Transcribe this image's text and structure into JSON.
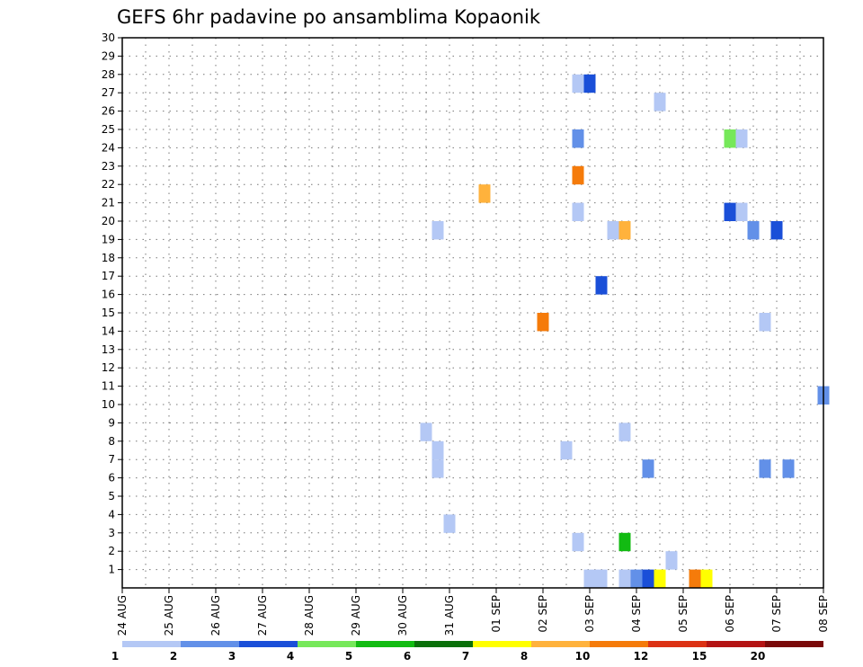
{
  "chart_data": {
    "type": "heatmap",
    "title": "GEFS 6hr padavine po ansamblima Kopaonik",
    "xlabel": "",
    "ylabel": "",
    "x_ticks": [
      "24 AUG",
      "25 AUG",
      "26 AUG",
      "27 AUG",
      "28 AUG",
      "29 AUG",
      "30 AUG",
      "31 AUG",
      "01 SEP",
      "02 SEP",
      "03 SEP",
      "04 SEP",
      "05 SEP",
      "06 SEP",
      "07 SEP",
      "08 SEP"
    ],
    "y_ticks": [
      "1",
      "2",
      "3",
      "4",
      "5",
      "6",
      "7",
      "8",
      "9",
      "10",
      "11",
      "12",
      "13",
      "14",
      "15",
      "16",
      "17",
      "18",
      "19",
      "20",
      "21",
      "22",
      "23",
      "24",
      "25",
      "26",
      "27",
      "28",
      "29",
      "30"
    ],
    "ylim": [
      0,
      30
    ],
    "x_range_days": [
      0,
      15
    ],
    "grid": true,
    "legend": {
      "placement": "bottom",
      "colors": [
        "#b4c8f5",
        "#6290e8",
        "#1a4fd8",
        "#76e85a",
        "#12bb12",
        "#0a700a",
        "#ffff00",
        "#ffb23c",
        "#f57b0a",
        "#dc3214",
        "#b41414",
        "#7a0a0a"
      ],
      "labels": [
        "1",
        "2",
        "3",
        "4",
        "5",
        "6",
        "7",
        "8",
        "10",
        "12",
        "15",
        "20"
      ]
    },
    "cells": [
      {
        "day": 9.75,
        "member": 28,
        "cls": 1
      },
      {
        "day": 10.0,
        "member": 28,
        "cls": 3
      },
      {
        "day": 11.5,
        "member": 27,
        "cls": 1
      },
      {
        "day": 9.75,
        "member": 25,
        "cls": 2
      },
      {
        "day": 13.0,
        "member": 25,
        "cls": 4
      },
      {
        "day": 13.25,
        "member": 25,
        "cls": 1
      },
      {
        "day": 9.75,
        "member": 23,
        "cls": 9
      },
      {
        "day": 7.75,
        "member": 22,
        "cls": 8
      },
      {
        "day": 9.75,
        "member": 21,
        "cls": 1
      },
      {
        "day": 13.0,
        "member": 21,
        "cls": 3
      },
      {
        "day": 13.25,
        "member": 21,
        "cls": 1
      },
      {
        "day": 6.75,
        "member": 20,
        "cls": 1
      },
      {
        "day": 10.5,
        "member": 20,
        "cls": 1
      },
      {
        "day": 10.75,
        "member": 20,
        "cls": 8
      },
      {
        "day": 13.5,
        "member": 20,
        "cls": 2
      },
      {
        "day": 14.0,
        "member": 20,
        "cls": 3
      },
      {
        "day": 10.25,
        "member": 17,
        "cls": 3
      },
      {
        "day": 9.0,
        "member": 15,
        "cls": 9
      },
      {
        "day": 13.75,
        "member": 15,
        "cls": 1
      },
      {
        "day": 15.0,
        "member": 11,
        "cls": 2
      },
      {
        "day": 6.5,
        "member": 9,
        "cls": 1
      },
      {
        "day": 10.75,
        "member": 9,
        "cls": 1
      },
      {
        "day": 6.75,
        "member": 8,
        "cls": 1
      },
      {
        "day": 9.5,
        "member": 8,
        "cls": 1
      },
      {
        "day": 6.75,
        "member": 7,
        "cls": 1
      },
      {
        "day": 11.25,
        "member": 7,
        "cls": 2
      },
      {
        "day": 13.75,
        "member": 7,
        "cls": 2
      },
      {
        "day": 14.25,
        "member": 7,
        "cls": 2
      },
      {
        "day": 7.0,
        "member": 4,
        "cls": 1
      },
      {
        "day": 9.75,
        "member": 3,
        "cls": 1
      },
      {
        "day": 10.75,
        "member": 3,
        "cls": 5
      },
      {
        "day": 11.75,
        "member": 2,
        "cls": 1
      },
      {
        "day": 10.0,
        "member": 1,
        "cls": 1
      },
      {
        "day": 10.25,
        "member": 1,
        "cls": 1
      },
      {
        "day": 10.75,
        "member": 1,
        "cls": 1
      },
      {
        "day": 11.0,
        "member": 1,
        "cls": 2
      },
      {
        "day": 11.25,
        "member": 1,
        "cls": 3
      },
      {
        "day": 11.5,
        "member": 1,
        "cls": 7
      },
      {
        "day": 12.25,
        "member": 1,
        "cls": 9
      },
      {
        "day": 12.5,
        "member": 1,
        "cls": 7
      }
    ]
  }
}
